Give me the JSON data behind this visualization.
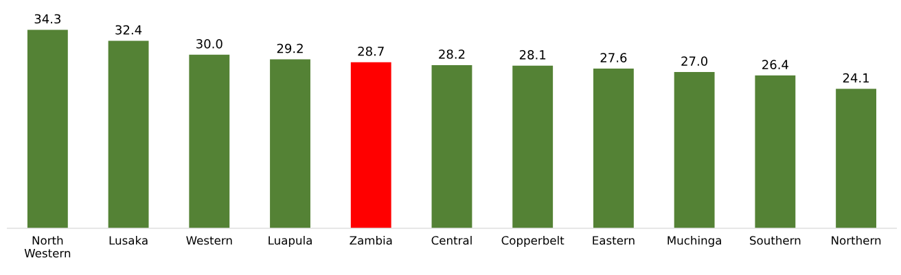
{
  "chart_data": {
    "type": "bar",
    "categories": [
      "North Western",
      "Lusaka",
      "Western",
      "Luapula",
      "Zambia",
      "Central",
      "Copperbelt",
      "Eastern",
      "Muchinga",
      "Southern",
      "Northern"
    ],
    "values": [
      34.3,
      32.4,
      30.0,
      29.2,
      28.7,
      28.2,
      28.1,
      27.6,
      27.0,
      26.4,
      24.1
    ],
    "value_labels": [
      "34.3",
      "32.4",
      "30.0",
      "29.2",
      "28.7",
      "28.2",
      "28.1",
      "27.6",
      "27.0",
      "26.4",
      "24.1"
    ],
    "colors": [
      "#548235",
      "#548235",
      "#548235",
      "#548235",
      "#ff0000",
      "#548235",
      "#548235",
      "#548235",
      "#548235",
      "#548235",
      "#548235"
    ],
    "grid": false,
    "legend": false
  }
}
